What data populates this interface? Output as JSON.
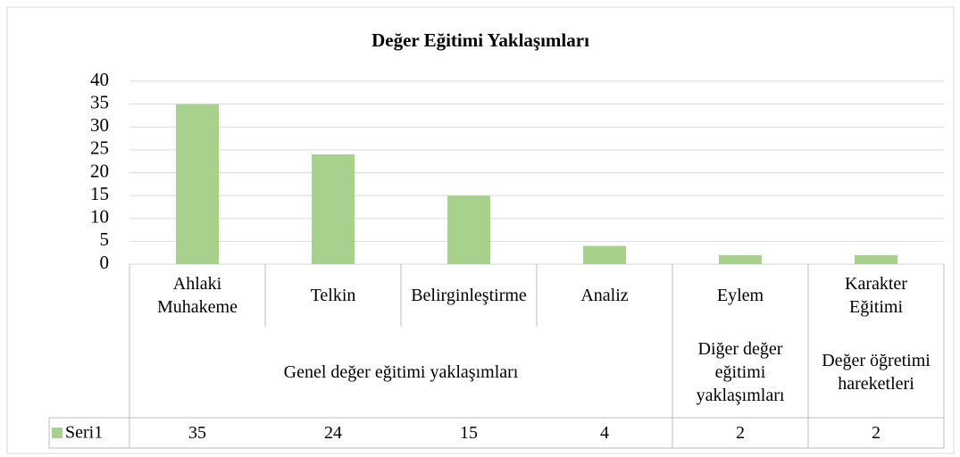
{
  "chart_data": {
    "type": "bar",
    "title": "Değer Eğitimi Yaklaşımları",
    "groups": [
      {
        "name": "Genel değer eğitimi yaklaşımları",
        "categories": [
          "Ahlaki Muhakeme",
          "Telkin",
          "Belirginleştirme",
          "Analiz"
        ]
      },
      {
        "name": "Diğer değer eğitimi yaklaşımları",
        "categories": [
          "Eylem"
        ]
      },
      {
        "name": "Değer öğretimi hareketleri",
        "categories": [
          "Karakter Eğitimi"
        ]
      }
    ],
    "series": [
      {
        "name": "Seri1",
        "color": "#a9d18e",
        "values": [
          35,
          24,
          15,
          4,
          2,
          2
        ]
      }
    ],
    "ylim": [
      0,
      40
    ],
    "yticks": [
      0,
      5,
      10,
      15,
      20,
      25,
      30,
      35,
      40
    ],
    "grid": true,
    "data_table": true
  }
}
